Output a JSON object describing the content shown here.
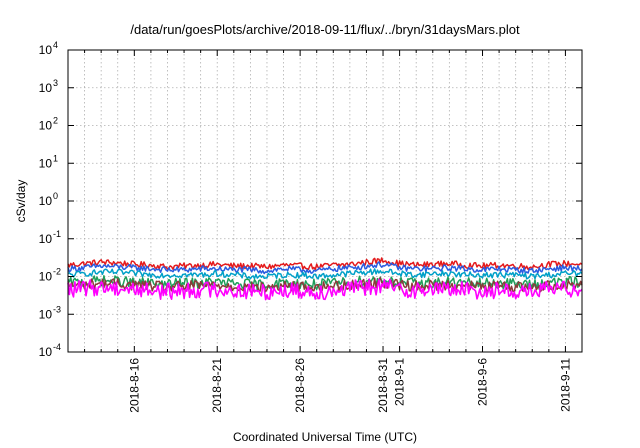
{
  "chart_data": {
    "type": "line",
    "title": "/data/run/goesPlots/archive/2018-09-11/flux/../bryn/31daysMars.plot",
    "xlabel": "Coordinated Universal Time (UTC)",
    "ylabel": "cSv/day",
    "yscale": "log",
    "ylim": [
      0.0001,
      10000
    ],
    "xlim": [
      "2018-08-12",
      "2018-09-12"
    ],
    "grid": true,
    "y_ticks": [
      {
        "value": 0.0001,
        "base": "10",
        "exp": "-4"
      },
      {
        "value": 0.001,
        "base": "10",
        "exp": "-3"
      },
      {
        "value": 0.01,
        "base": "10",
        "exp": "-2"
      },
      {
        "value": 0.1,
        "base": "10",
        "exp": "-1"
      },
      {
        "value": 1,
        "base": "10",
        "exp": "0"
      },
      {
        "value": 10,
        "base": "10",
        "exp": "1"
      },
      {
        "value": 100,
        "base": "10",
        "exp": "2"
      },
      {
        "value": 1000,
        "base": "10",
        "exp": "3"
      },
      {
        "value": 10000,
        "base": "10",
        "exp": "4"
      }
    ],
    "x_ticks": [
      {
        "date": "2018-08-16",
        "label": "2018-8-16"
      },
      {
        "date": "2018-08-21",
        "label": "2018-8-21"
      },
      {
        "date": "2018-08-26",
        "label": "2018-8-26"
      },
      {
        "date": "2018-08-31",
        "label": "2018-8-31"
      },
      {
        "date": "2018-09-01",
        "label": "2018-9-1"
      },
      {
        "date": "2018-09-06",
        "label": "2018-9-6"
      },
      {
        "date": "2018-09-11",
        "label": "2018-9-11"
      }
    ],
    "x": [
      "2018-08-12",
      "2018-08-13",
      "2018-08-14",
      "2018-08-15",
      "2018-08-16",
      "2018-08-17",
      "2018-08-18",
      "2018-08-19",
      "2018-08-20",
      "2018-08-21",
      "2018-08-22",
      "2018-08-23",
      "2018-08-24",
      "2018-08-25",
      "2018-08-26",
      "2018-08-27",
      "2018-08-28",
      "2018-08-29",
      "2018-08-30",
      "2018-08-31",
      "2018-09-01",
      "2018-09-02",
      "2018-09-03",
      "2018-09-04",
      "2018-09-05",
      "2018-09-06",
      "2018-09-07",
      "2018-09-08",
      "2018-09-09",
      "2018-09-10",
      "2018-09-11",
      "2018-09-12"
    ],
    "series": [
      {
        "color": "#e41a1c",
        "values": [
          0.02,
          0.022,
          0.024,
          0.023,
          0.021,
          0.02,
          0.018,
          0.019,
          0.02,
          0.021,
          0.019,
          0.019,
          0.018,
          0.02,
          0.019,
          0.018,
          0.02,
          0.021,
          0.024,
          0.027,
          0.022,
          0.02,
          0.021,
          0.022,
          0.02,
          0.019,
          0.02,
          0.019,
          0.018,
          0.021,
          0.022,
          0.021
        ]
      },
      {
        "color": "#2a5ce0",
        "values": [
          0.016,
          0.017,
          0.019,
          0.018,
          0.017,
          0.016,
          0.015,
          0.015,
          0.016,
          0.016,
          0.015,
          0.015,
          0.014,
          0.016,
          0.015,
          0.014,
          0.016,
          0.017,
          0.019,
          0.021,
          0.017,
          0.016,
          0.016,
          0.017,
          0.016,
          0.015,
          0.016,
          0.015,
          0.014,
          0.016,
          0.017,
          0.016
        ]
      },
      {
        "color": "#00a0c8",
        "values": [
          0.011,
          0.012,
          0.013,
          0.013,
          0.012,
          0.011,
          0.011,
          0.011,
          0.011,
          0.012,
          0.011,
          0.01,
          0.01,
          0.011,
          0.011,
          0.01,
          0.011,
          0.012,
          0.013,
          0.014,
          0.012,
          0.011,
          0.012,
          0.012,
          0.011,
          0.011,
          0.011,
          0.011,
          0.01,
          0.011,
          0.012,
          0.012
        ]
      },
      {
        "color": "#1f9e5a",
        "values": [
          0.0068,
          0.0072,
          0.0078,
          0.0075,
          0.007,
          0.0066,
          0.0063,
          0.0065,
          0.0068,
          0.007,
          0.0065,
          0.0062,
          0.0061,
          0.0066,
          0.0064,
          0.0061,
          0.0066,
          0.0071,
          0.0078,
          0.0082,
          0.0071,
          0.0066,
          0.0069,
          0.0072,
          0.0067,
          0.0064,
          0.0066,
          0.0064,
          0.006,
          0.0068,
          0.0072,
          0.007
        ]
      },
      {
        "color": "#8c3a3a",
        "values": [
          0.0058,
          0.0061,
          0.0066,
          0.0064,
          0.006,
          0.0056,
          0.0053,
          0.0055,
          0.0058,
          0.006,
          0.0055,
          0.0052,
          0.0051,
          0.0056,
          0.0054,
          0.0051,
          0.0056,
          0.006,
          0.0066,
          0.007,
          0.006,
          0.0056,
          0.0058,
          0.0061,
          0.0057,
          0.0054,
          0.0056,
          0.0054,
          0.0051,
          0.0058,
          0.0061,
          0.0059
        ]
      },
      {
        "color": "#ff00ff",
        "values": [
          0.0045,
          0.0048,
          0.0052,
          0.005,
          0.0046,
          0.0043,
          0.004,
          0.0042,
          0.0045,
          0.0046,
          0.0042,
          0.004,
          0.0039,
          0.0043,
          0.0041,
          0.0039,
          0.0043,
          0.0047,
          0.0052,
          0.0055,
          0.0047,
          0.0043,
          0.0045,
          0.0048,
          0.0044,
          0.0041,
          0.0043,
          0.0041,
          0.0039,
          0.0045,
          0.0048,
          0.0046
        ]
      }
    ]
  }
}
